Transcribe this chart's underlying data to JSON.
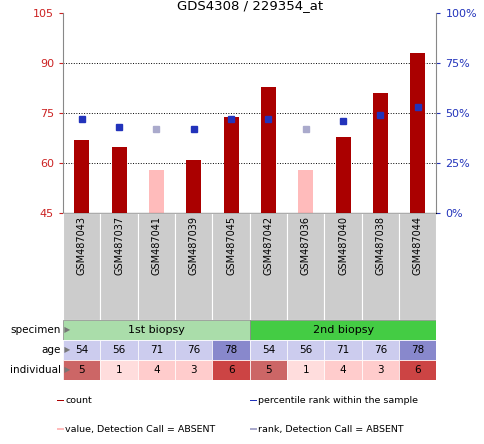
{
  "title": "GDS4308 / 229354_at",
  "samples": [
    "GSM487043",
    "GSM487037",
    "GSM487041",
    "GSM487039",
    "GSM487045",
    "GSM487042",
    "GSM487036",
    "GSM487040",
    "GSM487038",
    "GSM487044"
  ],
  "count_values": [
    67,
    65,
    null,
    61,
    74,
    83,
    null,
    68,
    81,
    93
  ],
  "absent_count_values": [
    null,
    null,
    58,
    null,
    null,
    null,
    58,
    null,
    null,
    null
  ],
  "rank_values": [
    47,
    43,
    null,
    42,
    47,
    47,
    null,
    46,
    49,
    53
  ],
  "absent_rank_values": [
    null,
    null,
    42,
    null,
    null,
    null,
    42,
    null,
    null,
    null
  ],
  "ylim_left": [
    45,
    105
  ],
  "ylim_right": [
    0,
    100
  ],
  "yticks_left": [
    45,
    60,
    75,
    90,
    105
  ],
  "yticks_right": [
    0,
    25,
    50,
    75,
    100
  ],
  "ytick_labels_left": [
    "45",
    "60",
    "75",
    "90",
    "105"
  ],
  "ytick_labels_right": [
    "0%",
    "25%",
    "50%",
    "75%",
    "100%"
  ],
  "hgrid_values": [
    60,
    75,
    90
  ],
  "bar_color": "#aa0000",
  "absent_bar_color": "#ffbbbb",
  "rank_color": "#2233bb",
  "absent_rank_color": "#aaaacc",
  "specimen_colors_1st": "#aaddaa",
  "specimen_colors_2nd": "#44cc44",
  "age_colors": [
    "#ccccee",
    "#ccccee",
    "#ccccee",
    "#ccccee",
    "#8888cc",
    "#ccccee",
    "#ccccee",
    "#ccccee",
    "#ccccee",
    "#8888cc"
  ],
  "individual_colors": [
    "#cc6666",
    "#ffdddd",
    "#ffcccc",
    "#ffcccc",
    "#cc4444",
    "#cc6666",
    "#ffdddd",
    "#ffcccc",
    "#ffcccc",
    "#cc4444"
  ],
  "age_row": [
    54,
    56,
    71,
    76,
    78,
    54,
    56,
    71,
    76,
    78
  ],
  "individual_row": [
    5,
    1,
    4,
    3,
    6,
    5,
    1,
    4,
    3,
    6
  ],
  "legend_items": [
    {
      "label": "count",
      "color": "#aa0000"
    },
    {
      "label": "percentile rank within the sample",
      "color": "#2233bb"
    },
    {
      "label": "value, Detection Call = ABSENT",
      "color": "#ffbbbb"
    },
    {
      "label": "rank, Detection Call = ABSENT",
      "color": "#aaaacc"
    }
  ],
  "sample_label_bg": "#cccccc",
  "row_label_color": "#444444"
}
